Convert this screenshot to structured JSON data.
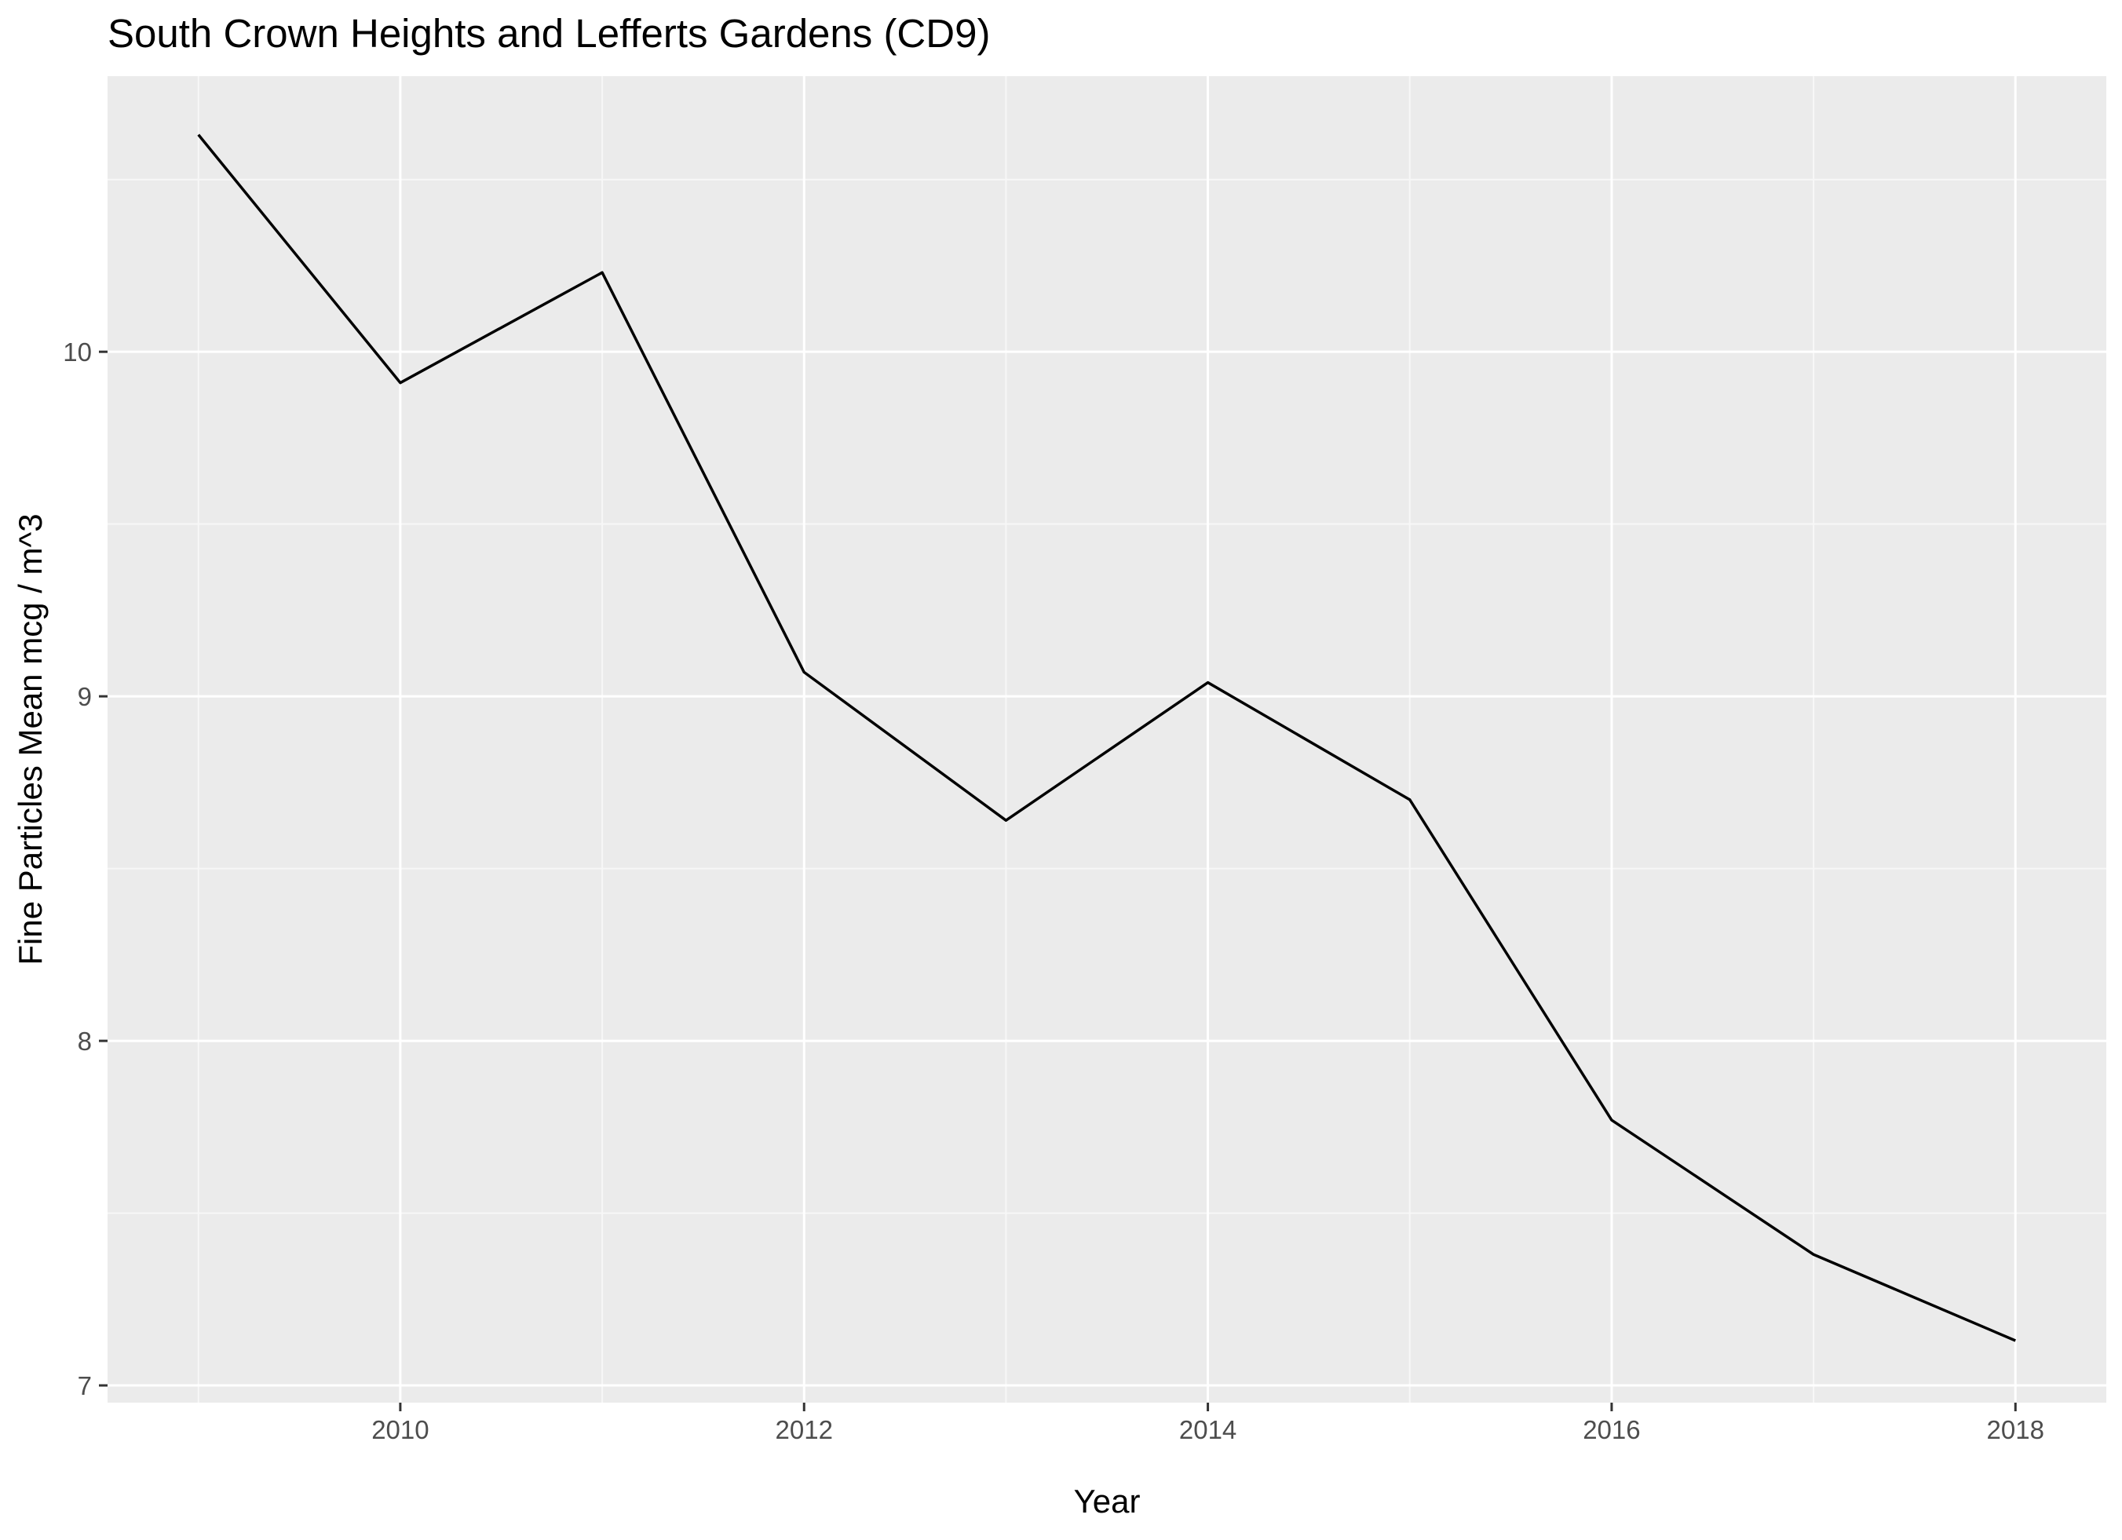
{
  "chart_data": {
    "type": "line",
    "title": "South Crown Heights and Lefferts Gardens (CD9)",
    "xlabel": "Year",
    "ylabel": "Fine Particles Mean mcg / m^3",
    "x": [
      2009,
      2010,
      2011,
      2012,
      2013,
      2014,
      2015,
      2016,
      2017,
      2018
    ],
    "series": [
      {
        "values": [
          10.63,
          9.91,
          10.23,
          9.07,
          8.64,
          9.04,
          8.7,
          7.77,
          7.38,
          7.13
        ]
      }
    ],
    "xlim": [
      2008.55,
      2018.45
    ],
    "ylim": [
      6.95,
      10.8
    ],
    "x_ticks": [
      2010,
      2012,
      2014,
      2016,
      2018
    ],
    "x_tick_labels": [
      "2010",
      "2012",
      "2014",
      "2016",
      "2018"
    ],
    "y_ticks": [
      7,
      8,
      9,
      10
    ],
    "y_tick_labels": [
      "7",
      "8",
      "9",
      "10"
    ],
    "x_minor_ticks": [
      2009,
      2011,
      2013,
      2015,
      2017
    ],
    "y_minor_ticks": [
      7.5,
      8.5,
      9.5,
      10.5
    ],
    "grid": true,
    "legend": "none",
    "colors": {
      "panel_background": "#ebebeb",
      "grid_major": "#ffffff",
      "grid_minor": "#f7f7f7",
      "line": "#000000",
      "tick_text": "#4d4d4d",
      "tick_mark": "#333333"
    }
  }
}
